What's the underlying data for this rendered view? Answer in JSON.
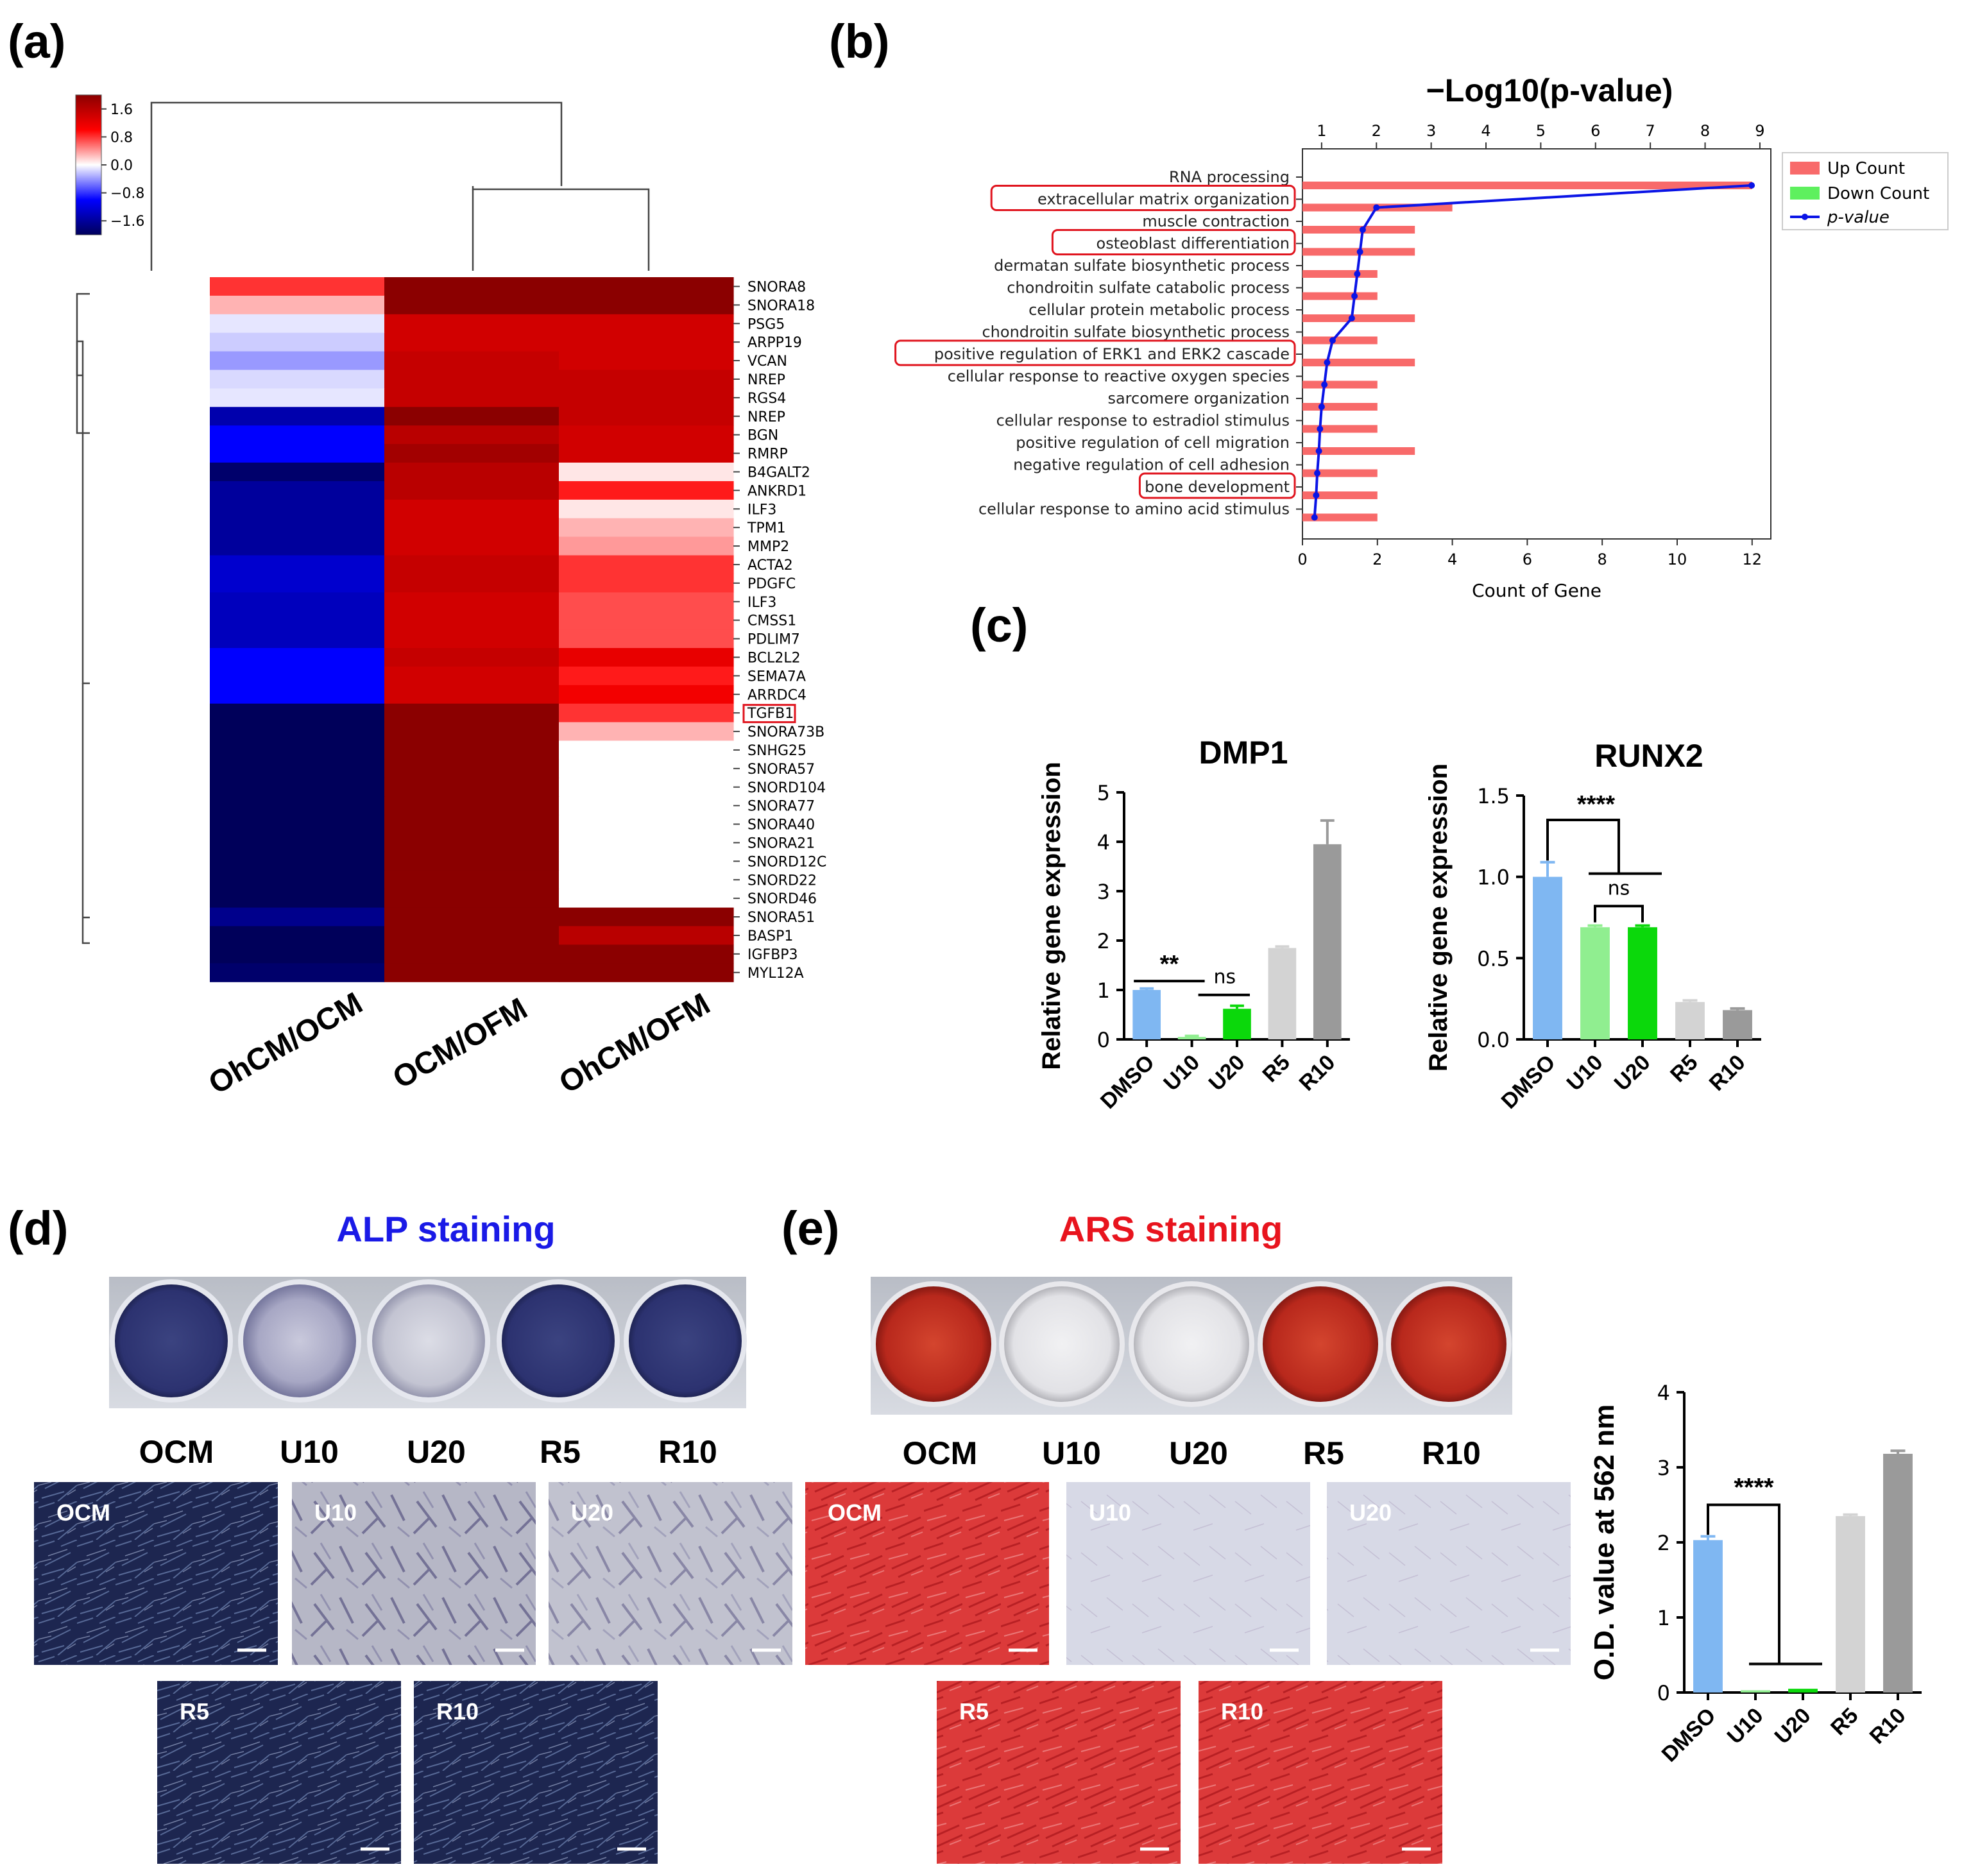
{
  "panels": {
    "a": "(a)",
    "b": "(b)",
    "c": "(c)",
    "d": "(d)",
    "e": "(e)"
  },
  "colors": {
    "up": "#f86a6a",
    "down": "#5ef05e",
    "pvalue": "#0a14e6",
    "highlight": "#e0141e",
    "alp": "#1a1ae6",
    "ars": "#e8141e"
  },
  "chart_data": [
    {
      "id": "heatmap",
      "type": "heatmap",
      "colorbar": {
        "ticks": [
          "1.6",
          "0.8",
          "0.0",
          "−0.8",
          "−1.6"
        ],
        "range": [
          -2,
          2
        ]
      },
      "columns": [
        "OhCM/OCM",
        "OCM/OFM",
        "OhCM/OFM"
      ],
      "genes": [
        "SNORA8",
        "SNORA18",
        "PSG5",
        "ARPP19",
        "VCAN",
        "NREP",
        "RGS4",
        "NREP",
        "BGN",
        "RMRP",
        "B4GALT2",
        "ANKRD1",
        "ILF3",
        "TPM1",
        "MMP2",
        "ACTA2",
        "PDGFC",
        "ILF3",
        "CMSS1",
        "PDLIM7",
        "BCL2L2",
        "SEMA7A",
        "ARRDC4",
        "TGFB1",
        "SNORA73B",
        "SNHG25",
        "SNORA57",
        "SNORD104",
        "SNORA77",
        "SNORA40",
        "SNORA21",
        "SNORD12C",
        "SNORD22",
        "SNORD46",
        "SNORA51",
        "BASP1",
        "IGFBP3",
        "MYL12A"
      ],
      "highlighted_gene": "TGFB1",
      "values": [
        [
          0.8,
          2.0,
          2.0
        ],
        [
          0.3,
          2.0,
          2.0
        ],
        [
          -0.1,
          1.4,
          1.4
        ],
        [
          -0.2,
          1.4,
          1.4
        ],
        [
          -0.4,
          1.5,
          1.4
        ],
        [
          -0.15,
          1.5,
          1.5
        ],
        [
          -0.1,
          1.5,
          1.5
        ],
        [
          -1.5,
          2.0,
          1.5
        ],
        [
          -1.0,
          1.6,
          1.4
        ],
        [
          -1.0,
          1.8,
          1.4
        ],
        [
          -1.9,
          1.6,
          0.1
        ],
        [
          -1.6,
          1.6,
          0.9
        ],
        [
          -1.6,
          1.4,
          0.1
        ],
        [
          -1.6,
          1.4,
          0.3
        ],
        [
          -1.6,
          1.4,
          0.4
        ],
        [
          -1.3,
          1.5,
          0.8
        ],
        [
          -1.3,
          1.5,
          0.8
        ],
        [
          -1.4,
          1.4,
          0.7
        ],
        [
          -1.4,
          1.4,
          0.7
        ],
        [
          -1.4,
          1.4,
          0.7
        ],
        [
          -1.0,
          1.5,
          1.2
        ],
        [
          -1.0,
          1.4,
          0.9
        ],
        [
          -1.0,
          1.4,
          1.1
        ],
        [
          -2.0,
          2.0,
          0.8
        ],
        [
          -2.0,
          2.0,
          0.3
        ],
        [
          -2.0,
          2.0,
          0.0
        ],
        [
          -2.0,
          2.0,
          0.0
        ],
        [
          -2.0,
          2.0,
          0.0
        ],
        [
          -2.0,
          2.0,
          0.0
        ],
        [
          -2.0,
          2.0,
          0.0
        ],
        [
          -2.0,
          2.0,
          0.0
        ],
        [
          -2.0,
          2.0,
          0.0
        ],
        [
          -2.0,
          2.0,
          0.0
        ],
        [
          -2.0,
          2.0,
          0.0
        ],
        [
          -1.7,
          2.0,
          2.0
        ],
        [
          -2.0,
          2.0,
          1.6
        ],
        [
          -2.0,
          2.0,
          2.0
        ],
        [
          -1.9,
          2.0,
          2.0
        ]
      ]
    },
    {
      "id": "go",
      "type": "bar",
      "title": "−Log10(p-value)",
      "terms": [
        "RNA processing",
        "extracellular matrix organization",
        "muscle contraction",
        "osteoblast differentiation",
        "dermatan sulfate biosynthetic process",
        "chondroitin sulfate catabolic process",
        "cellular protein metabolic process",
        "chondroitin sulfate biosynthetic process",
        "positive regulation of ERK1 and ERK2 cascade",
        "cellular response to reactive oxygen species",
        "sarcomere organization",
        "cellular response to estradiol stimulus",
        "positive regulation of cell migration",
        "negative regulation of cell adhesion",
        "bone development",
        "cellular response to amino acid stimulus"
      ],
      "highlighted": [
        1,
        3,
        8,
        14
      ],
      "up_count": [
        12,
        4,
        3,
        3,
        2,
        2,
        3,
        2,
        3,
        2,
        2,
        2,
        3,
        2,
        2,
        2
      ],
      "down_count": [
        0,
        0,
        0,
        0,
        0,
        0,
        0,
        0,
        0,
        0,
        0,
        0,
        0,
        0,
        0,
        0
      ],
      "neg_log10_p": [
        8.85,
        2.0,
        1.75,
        1.7,
        1.65,
        1.6,
        1.55,
        1.2,
        1.1,
        1.05,
        1.0,
        0.97,
        0.95,
        0.92,
        0.9,
        0.87
      ],
      "xlabel": "Count of Gene",
      "xlim": [
        0,
        12.5
      ],
      "xticks": [
        "0",
        "2",
        "4",
        "6",
        "8",
        "10",
        "12"
      ],
      "top_ticks": [
        "1",
        "2",
        "3",
        "4",
        "5",
        "6",
        "7",
        "8",
        "9"
      ],
      "top_lim": [
        0.65,
        9.2
      ],
      "legend": [
        "Up Count",
        "Down Count",
        "p-value"
      ]
    },
    {
      "id": "dmp1",
      "type": "bar",
      "title": "DMP1",
      "ylabel": "Relative gene expression",
      "categories": [
        "DMSO",
        "U10",
        "U20",
        "R5",
        "R10"
      ],
      "values": [
        1.0,
        0.05,
        0.62,
        1.85,
        3.95
      ],
      "errors": [
        0.03,
        0.02,
        0.06,
        0.03,
        0.48
      ],
      "ylim": [
        0,
        5
      ],
      "yticks": [
        "0",
        "1",
        "2",
        "3",
        "4",
        "5"
      ],
      "bar_colors": [
        "#7fb7f2",
        "#90ee90",
        "#0bd80b",
        "#d3d3d3",
        "#9a9a9a"
      ],
      "annotations": [
        "**",
        "ns"
      ]
    },
    {
      "id": "runx2",
      "type": "bar",
      "title": "RUNX2",
      "ylabel": "Relative gene expression",
      "categories": [
        "DMSO",
        "U10",
        "U20",
        "R5",
        "R10"
      ],
      "values": [
        1.0,
        0.69,
        0.69,
        0.23,
        0.18
      ],
      "errors": [
        0.09,
        0.01,
        0.01,
        0.01,
        0.01
      ],
      "ylim": [
        0,
        1.5
      ],
      "yticks": [
        "0.0",
        "0.5",
        "1.0",
        "1.5"
      ],
      "bar_colors": [
        "#7fb7f2",
        "#90ee90",
        "#0bd80b",
        "#d3d3d3",
        "#9a9a9a"
      ],
      "annotations": [
        "****",
        "ns"
      ]
    },
    {
      "id": "od",
      "type": "bar",
      "ylabel": "O.D. value at 562 nm",
      "categories": [
        "DMSO",
        "U10",
        "U20",
        "R5",
        "R10"
      ],
      "values": [
        2.03,
        0.03,
        0.05,
        2.35,
        3.18
      ],
      "errors": [
        0.05,
        0.0,
        0.0,
        0.02,
        0.04
      ],
      "ylim": [
        0,
        4
      ],
      "yticks": [
        "0",
        "1",
        "2",
        "3",
        "4"
      ],
      "bar_colors": [
        "#7fb7f2",
        "#90ee90",
        "#0bd80b",
        "#d3d3d3",
        "#9a9a9a"
      ],
      "annotations": [
        "****"
      ]
    }
  ],
  "alp": {
    "title": "ALP staining",
    "labels": [
      "OCM",
      "U10",
      "U20",
      "R5",
      "R10"
    ],
    "tiles": [
      "OCM",
      "U10",
      "U20",
      "R5",
      "R10"
    ]
  },
  "ars": {
    "title": "ARS staining",
    "labels": [
      "OCM",
      "U10",
      "U20",
      "R5",
      "R10"
    ],
    "tiles": [
      "OCM",
      "U10",
      "U20",
      "R5",
      "R10"
    ]
  }
}
